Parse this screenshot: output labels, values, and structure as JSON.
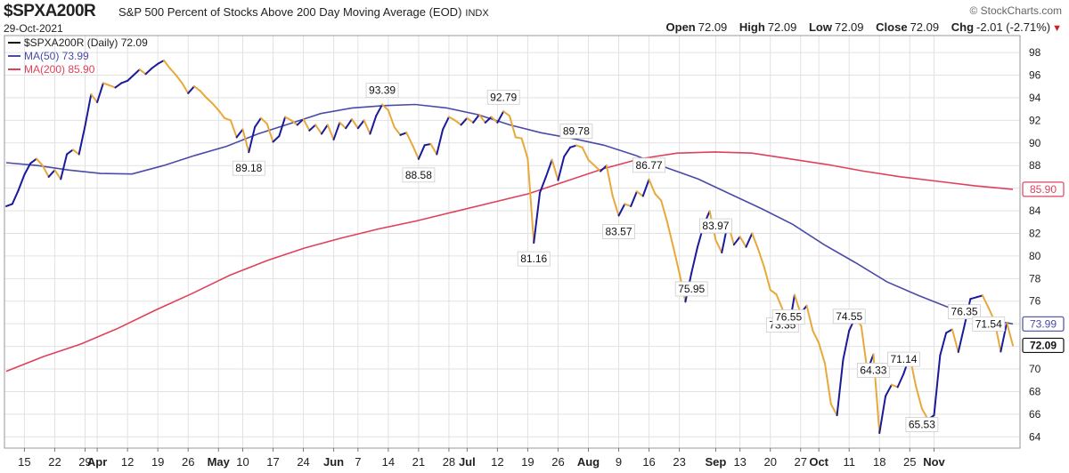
{
  "header": {
    "symbol": "$SPXA200R",
    "description": "S&P 500 Percent of Stocks Above 200 Day Moving Average (EOD)",
    "exchange": "INDX",
    "date": "29-Oct-2021",
    "brand": "© StockCharts.com",
    "open_label": "Open",
    "open_value": "72.09",
    "high_label": "High",
    "high_value": "72.09",
    "low_label": "Low",
    "low_value": "72.09",
    "close_label": "Close",
    "close_value": "72.09",
    "chg_label": "Chg",
    "chg_value": "-2.01 (-2.71%)",
    "chg_arrow": "▼"
  },
  "legend": {
    "price": "$SPXA200R (Daily) 72.09",
    "ma50": "MA(50) 73.99",
    "ma200": "MA(200) 85.90"
  },
  "colors": {
    "up": "#1a1a9a",
    "down": "#e8a93a",
    "ma50": "#4a4aa8",
    "ma200": "#e0405a",
    "grid": "#e2e2e2"
  },
  "chart_data": {
    "type": "line",
    "ylim": [
      63,
      99.5
    ],
    "y_ticks": [
      64,
      66,
      68,
      70,
      72,
      74,
      76,
      78,
      80,
      82,
      84,
      86,
      88,
      90,
      92,
      94,
      96,
      98
    ],
    "x_ticks": [
      {
        "i": 3,
        "label": "15"
      },
      {
        "i": 8,
        "label": "22"
      },
      {
        "i": 13,
        "label": "29"
      },
      {
        "i": 15,
        "label": "Apr",
        "bold": true
      },
      {
        "i": 20,
        "label": "12"
      },
      {
        "i": 25,
        "label": "19"
      },
      {
        "i": 30,
        "label": "26"
      },
      {
        "i": 35,
        "label": "May",
        "bold": true
      },
      {
        "i": 39,
        "label": "10"
      },
      {
        "i": 44,
        "label": "17"
      },
      {
        "i": 49,
        "label": "24"
      },
      {
        "i": 54,
        "label": "Jun",
        "bold": true
      },
      {
        "i": 58,
        "label": "7"
      },
      {
        "i": 63,
        "label": "14"
      },
      {
        "i": 68,
        "label": "21"
      },
      {
        "i": 73,
        "label": "28"
      },
      {
        "i": 76,
        "label": "Jul",
        "bold": true
      },
      {
        "i": 81,
        "label": "12"
      },
      {
        "i": 86,
        "label": "19"
      },
      {
        "i": 91,
        "label": "26"
      },
      {
        "i": 96,
        "label": "Aug",
        "bold": true
      },
      {
        "i": 101,
        "label": "9"
      },
      {
        "i": 106,
        "label": "16"
      },
      {
        "i": 111,
        "label": "23"
      },
      {
        "i": 117,
        "label": "Sep",
        "bold": true
      },
      {
        "i": 121,
        "label": "13"
      },
      {
        "i": 126,
        "label": "20"
      },
      {
        "i": 131,
        "label": "27"
      },
      {
        "i": 134,
        "label": "Oct",
        "bold": true
      },
      {
        "i": 139,
        "label": "11"
      },
      {
        "i": 144,
        "label": "18"
      },
      {
        "i": 149,
        "label": "25"
      },
      {
        "i": 153,
        "label": "Nov",
        "bold": true
      }
    ],
    "series": [
      {
        "name": "$SPXA200R (Daily)",
        "values": [
          84.4,
          84.6,
          85.8,
          87.2,
          88.2,
          88.6,
          88.0,
          87.0,
          87.6,
          86.8,
          89.0,
          89.4,
          89.0,
          91.5,
          94.3,
          93.6,
          95.3,
          95.1,
          94.9,
          95.3,
          95.5,
          96.0,
          96.5,
          96.1,
          96.6,
          97.0,
          97.3,
          96.6,
          96.0,
          95.3,
          94.4,
          95.0,
          94.6,
          94.0,
          93.5,
          92.9,
          92.2,
          92.0,
          90.5,
          91.2,
          89.18,
          91.4,
          92.2,
          91.7,
          90.1,
          90.6,
          92.3,
          92.0,
          91.6,
          92.1,
          91.1,
          91.6,
          90.8,
          91.6,
          90.3,
          91.8,
          91.3,
          92.1,
          91.3,
          92.0,
          90.8,
          92.4,
          93.39,
          92.9,
          91.4,
          90.7,
          90.9,
          89.8,
          88.58,
          89.8,
          89.9,
          89.0,
          91.2,
          92.3,
          92.0,
          91.6,
          92.2,
          91.8,
          92.5,
          91.8,
          92.3,
          91.8,
          92.79,
          92.4,
          90.5,
          90.4,
          88.6,
          81.16,
          85.6,
          87.0,
          88.5,
          86.7,
          88.8,
          89.6,
          89.78,
          89.6,
          88.5,
          88.0,
          87.5,
          88.0,
          85.3,
          83.57,
          84.6,
          84.4,
          85.7,
          85.3,
          86.77,
          85.5,
          84.9,
          83.0,
          80.8,
          78.5,
          75.95,
          78.5,
          80.8,
          82.7,
          83.97,
          81.4,
          80.3,
          82.9,
          81.0,
          81.7,
          80.8,
          82.0,
          80.6,
          79.0,
          77.0,
          76.6,
          75.3,
          73.35,
          76.55,
          74.9,
          75.6,
          73.4,
          72.3,
          70.5,
          66.9,
          65.9,
          70.8,
          73.4,
          74.55,
          73.8,
          69.8,
          71.3,
          64.33,
          67.6,
          68.6,
          68.4,
          69.6,
          71.14,
          68.5,
          66.5,
          65.53,
          65.9,
          71.2,
          73.2,
          73.5,
          71.5,
          73.8,
          76.2,
          76.35,
          76.5,
          75.4,
          74.2,
          71.54,
          74.1,
          72.09
        ]
      },
      {
        "name": "MA(50)",
        "values": [
          88.25,
          88.0,
          87.6,
          87.3,
          87.25,
          88.0,
          88.9,
          89.7,
          90.8,
          91.7,
          92.6,
          93.1,
          93.3,
          93.4,
          93.1,
          92.5,
          91.6,
          90.9,
          90.4,
          89.8,
          88.9,
          87.8,
          86.8,
          85.5,
          84.2,
          82.8,
          81.0,
          79.4,
          77.7,
          76.5,
          75.4,
          74.5,
          73.99
        ]
      },
      {
        "name": "MA(200)",
        "values": [
          69.8,
          71.1,
          72.2,
          73.6,
          75.2,
          76.7,
          78.3,
          79.6,
          80.7,
          81.6,
          82.4,
          83.1,
          83.9,
          84.7,
          85.5,
          86.6,
          87.7,
          88.6,
          89.1,
          89.2,
          89.1,
          88.6,
          88.1,
          87.5,
          87.0,
          86.6,
          86.2,
          85.9
        ]
      }
    ],
    "annotations": [
      {
        "i": 40,
        "label": "89.18",
        "pos": "below"
      },
      {
        "i": 62,
        "label": "93.39",
        "pos": "above"
      },
      {
        "i": 68,
        "label": "88.58",
        "pos": "below"
      },
      {
        "i": 82,
        "label": "92.79",
        "pos": "above"
      },
      {
        "i": 87,
        "label": "81.16",
        "pos": "below"
      },
      {
        "i": 94,
        "label": "89.78",
        "pos": "above"
      },
      {
        "i": 101,
        "label": "83.57",
        "pos": "below"
      },
      {
        "i": 106,
        "label": "86.77",
        "pos": "above"
      },
      {
        "i": 113,
        "label": "75.95",
        "pos": "below"
      },
      {
        "i": 117,
        "label": "83.97",
        "pos": "above"
      },
      {
        "i": 128,
        "label": "73.35",
        "pos": "below"
      },
      {
        "i": 129,
        "label": "76.55",
        "pos": "above"
      },
      {
        "i": 139,
        "label": "74.55",
        "pos": "above"
      },
      {
        "i": 143,
        "label": "64.33",
        "pos": "below"
      },
      {
        "i": 148,
        "label": "71.14",
        "pos": "above"
      },
      {
        "i": 151,
        "label": "65.53",
        "pos": "below"
      },
      {
        "i": 158,
        "label": "76.35",
        "pos": "above"
      },
      {
        "i": 162,
        "label": "71.54",
        "pos": "below"
      }
    ],
    "right_labels": [
      {
        "label": "85.90",
        "value": 85.9,
        "color": "#e0405a"
      },
      {
        "label": "73.99",
        "value": 73.99,
        "color": "#4a4aa8"
      },
      {
        "label": "72.09",
        "value": 72.09,
        "color": "#111111",
        "bold": true
      }
    ]
  }
}
